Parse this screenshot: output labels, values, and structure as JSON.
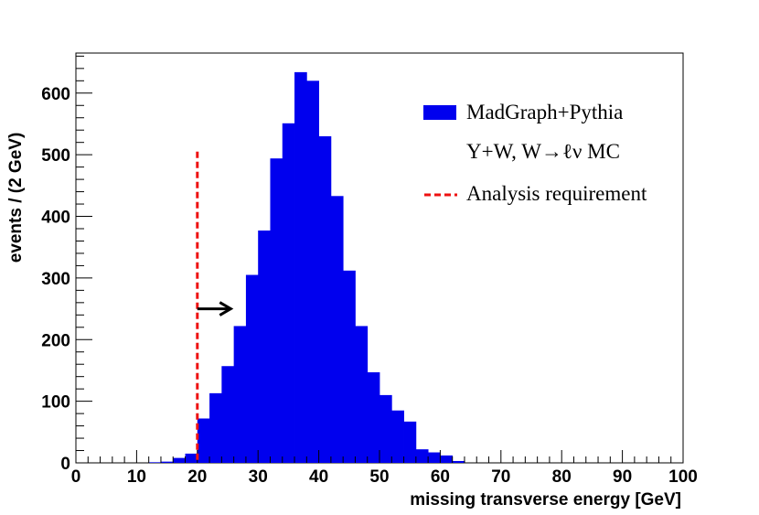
{
  "chart_data": {
    "type": "bar",
    "subtype": "histogram",
    "xlabel": "missing transverse energy [GeV]",
    "ylabel": "events / (2 GeV)",
    "xlim": [
      0,
      100
    ],
    "ylim": [
      0,
      665
    ],
    "x_ticks": [
      0,
      10,
      20,
      30,
      40,
      50,
      60,
      70,
      80,
      90,
      100
    ],
    "y_ticks": [
      0,
      100,
      200,
      300,
      400,
      500,
      600
    ],
    "bin_width": 2,
    "bin_edges_start": [
      12,
      14,
      16,
      18,
      20,
      22,
      24,
      26,
      28,
      30,
      32,
      34,
      36,
      38,
      40,
      42,
      44,
      46,
      48,
      50,
      52,
      54,
      56,
      58,
      60,
      62
    ],
    "values": [
      1,
      2,
      8,
      15,
      72,
      113,
      157,
      222,
      305,
      377,
      494,
      551,
      634,
      620,
      530,
      433,
      312,
      222,
      147,
      110,
      85,
      67,
      22,
      17,
      12,
      3
    ],
    "grid": false,
    "legend_position": "top-right",
    "legend": [
      {
        "label": "MadGraph+Pythia",
        "symbol": "box",
        "color": "#0000ee"
      },
      {
        "label": "Y+W, W→ℓν MC",
        "symbol": "none"
      },
      {
        "label": "Analysis requirement",
        "symbol": "dashed-line",
        "color": "#ee1111"
      }
    ],
    "annotations": [
      {
        "type": "vertical-dashed-line",
        "x": 20,
        "y_max": 505,
        "color": "#ee1111"
      },
      {
        "type": "arrow-right",
        "x_from": 20,
        "x_to": 25.5,
        "y": 250,
        "color": "#000000"
      }
    ],
    "bar_color": "#0000ee"
  }
}
